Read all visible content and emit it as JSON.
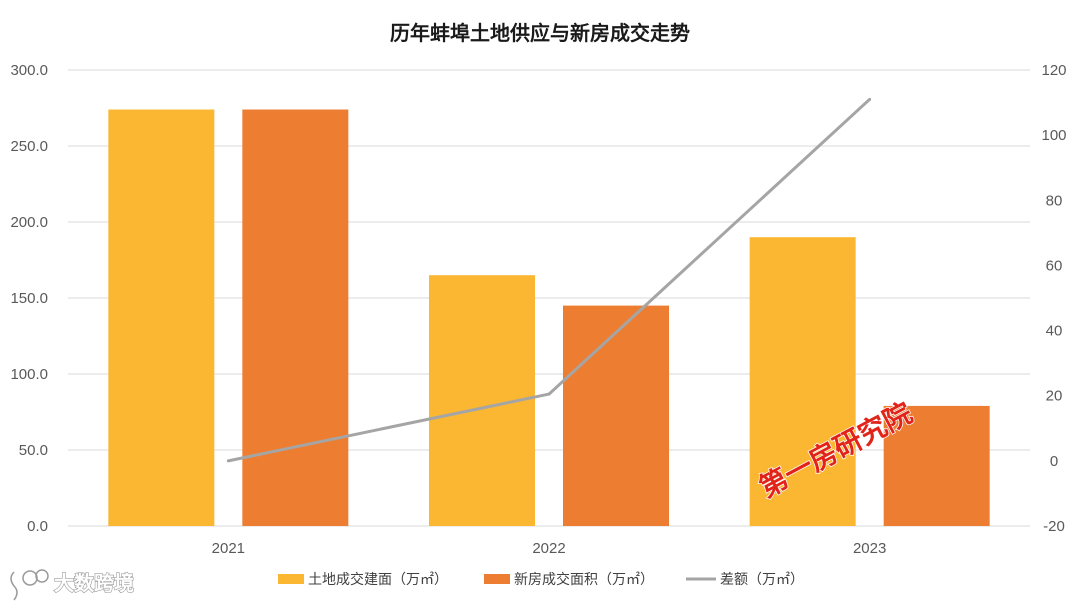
{
  "chart_data": {
    "type": "bar",
    "title": "历年蚌埠土地供应与新房成交走势",
    "categories": [
      "2021",
      "2022",
      "2023"
    ],
    "series": [
      {
        "name": "土地成交建面（万㎡）",
        "kind": "bar",
        "axis": "left",
        "color": "#FBB731",
        "values": [
          274,
          165,
          190
        ]
      },
      {
        "name": "新房成交面积（万㎡）",
        "kind": "bar",
        "axis": "left",
        "color": "#ED7D31",
        "values": [
          274,
          145,
          79
        ]
      },
      {
        "name": "差额（万㎡）",
        "kind": "line",
        "axis": "right",
        "color": "#A5A5A5",
        "values": [
          0,
          20.5,
          111
        ]
      }
    ],
    "y_left": {
      "min": 0,
      "max": 300,
      "ticks": [
        "0.0",
        "50.0",
        "100.0",
        "150.0",
        "200.0",
        "250.0",
        "300.0"
      ]
    },
    "y_right": {
      "min": -20,
      "max": 120,
      "ticks": [
        "-20",
        "0",
        "20",
        "40",
        "60",
        "80",
        "100",
        "120"
      ]
    },
    "grid": true,
    "legend_position": "bottom"
  },
  "watermarks": {
    "institute": "第一房研究院",
    "brand": "大数跨境"
  }
}
